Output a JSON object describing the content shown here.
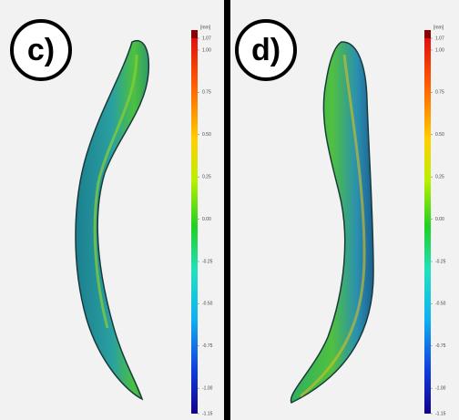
{
  "panels": [
    {
      "label": "c)",
      "scale": {
        "unit": "[mm]",
        "ticks": [
          "1.07",
          "1.00",
          "0.75",
          "0.50",
          "0.25",
          "0.00",
          "-0.25",
          "-0.50",
          "-0.75",
          "-1.00",
          "-1.15"
        ]
      }
    },
    {
      "label": "d)",
      "scale": {
        "unit": "[mm]",
        "ticks": [
          "1.07",
          "1.00",
          "0.75",
          "0.50",
          "0.25",
          "0.00",
          "-0.25",
          "-0.50",
          "-0.75",
          "-1.00",
          "-1.15"
        ]
      }
    }
  ]
}
